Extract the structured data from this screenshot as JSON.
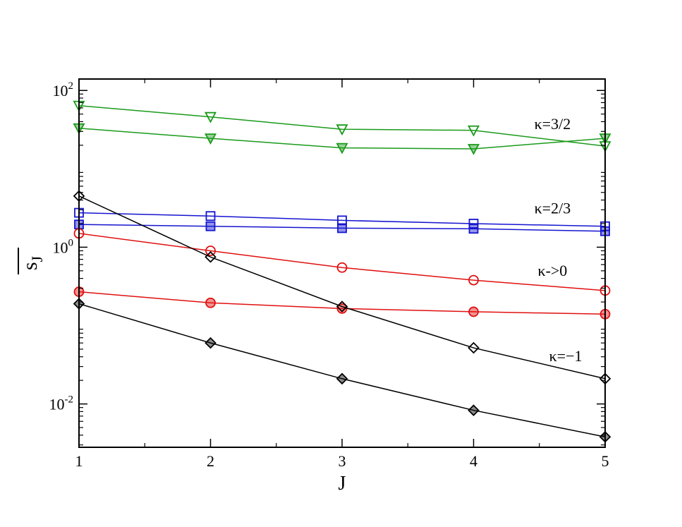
{
  "chart_data": {
    "type": "line",
    "title": "",
    "xlabel": "J",
    "ylabel": "s",
    "ylabel_subscript": "J",
    "ylabel_overline": true,
    "xlim": [
      1,
      5
    ],
    "ylim": [
      0.0028,
      140
    ],
    "yscale": "log",
    "grid": false,
    "xticks": [
      1,
      2,
      3,
      4,
      5
    ],
    "x_tick_labels": [
      "1",
      "2",
      "3",
      "4",
      "5"
    ],
    "yticks": [
      {
        "value": 100,
        "base": "10",
        "exp": "2"
      },
      {
        "value": 1,
        "base": "10",
        "exp": "0"
      },
      {
        "value": 0.01,
        "base": "10",
        "exp": "-2"
      }
    ],
    "x": [
      1,
      2,
      3,
      4,
      5
    ],
    "series": [
      {
        "name": "",
        "group": "κ=3/2",
        "marker": "triangle-down",
        "filled": false,
        "color": "#1a9a1a",
        "values": [
          64,
          46,
          32,
          31,
          19.5
        ]
      },
      {
        "name": "",
        "group": "κ=3/2",
        "marker": "triangle-down",
        "filled": true,
        "color": "#1a9a1a",
        "values": [
          33,
          24.5,
          18.5,
          18,
          24.5
        ]
      },
      {
        "name": "",
        "group": "κ=2/3",
        "marker": "square",
        "filled": false,
        "color": "#1515d0",
        "values": [
          2.75,
          2.5,
          2.2,
          2.0,
          1.85
        ]
      },
      {
        "name": "",
        "group": "κ=2/3",
        "marker": "square",
        "filled": true,
        "color": "#1515d0",
        "values": [
          1.95,
          1.85,
          1.75,
          1.72,
          1.6
        ]
      },
      {
        "name": "",
        "group": "κ->0",
        "marker": "circle",
        "filled": false,
        "color": "#e01010",
        "values": [
          1.5,
          0.9,
          0.55,
          0.38,
          0.28
        ]
      },
      {
        "name": "",
        "group": "κ->0",
        "marker": "circle",
        "filled": true,
        "color": "#e01010",
        "values": [
          0.27,
          0.195,
          0.165,
          0.15,
          0.14
        ]
      },
      {
        "name": "",
        "group": "κ=−1",
        "marker": "diamond",
        "filled": false,
        "color": "#000000",
        "values": [
          4.5,
          0.75,
          0.175,
          0.052,
          0.021
        ]
      },
      {
        "name": "",
        "group": "κ=−1",
        "marker": "diamond",
        "filled": true,
        "color": "#000000",
        "values": [
          0.19,
          0.06,
          0.021,
          0.0083,
          0.0038
        ]
      }
    ],
    "annotations": [
      {
        "text": "κ=3/2",
        "x": 4.6,
        "y": 32
      },
      {
        "text": "κ=2/3",
        "x": 4.6,
        "y": 2.7
      },
      {
        "text": "κ->0",
        "x": 4.6,
        "y": 0.43
      },
      {
        "text": "κ=−1",
        "x": 4.7,
        "y": 0.035
      }
    ]
  }
}
